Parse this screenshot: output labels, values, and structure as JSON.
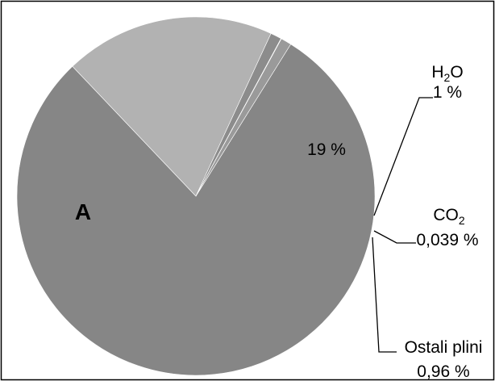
{
  "chart_data": {
    "type": "pie",
    "title": "",
    "slices": [
      {
        "key": "a",
        "label": "A",
        "value": 79.001,
        "color": "#868686"
      },
      {
        "key": "o2",
        "label": "19 %",
        "value": 19.0,
        "color": "#b2b2b2"
      },
      {
        "key": "h2o",
        "label": "1 %",
        "value": 1.0,
        "color": "#8c8c8c"
      },
      {
        "key": "co2",
        "label": "0,039 %",
        "value": 0.039,
        "color": "#a6a6a6"
      },
      {
        "key": "other",
        "label": "0,96 %",
        "value": 0.96,
        "color": "#9a9a9a"
      }
    ],
    "callouts": {
      "h2o": {
        "name_main": "H",
        "name_sub": "2",
        "name_tail": "O"
      },
      "co2": {
        "name_main": "CO",
        "name_sub": "2",
        "name_tail": ""
      },
      "other": {
        "name": "Ostali plini"
      }
    },
    "border_color": "#000000"
  }
}
